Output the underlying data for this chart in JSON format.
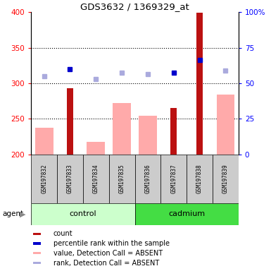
{
  "title": "GDS3632 / 1369329_at",
  "samples": [
    "GSM197832",
    "GSM197833",
    "GSM197834",
    "GSM197835",
    "GSM197836",
    "GSM197837",
    "GSM197838",
    "GSM197839"
  ],
  "values_absent": [
    238,
    null,
    218,
    272,
    254,
    null,
    null,
    284
  ],
  "values_present": [
    null,
    293,
    null,
    null,
    null,
    265,
    399,
    null
  ],
  "rank_absent_pct": [
    55,
    null,
    53,
    57.5,
    56.5,
    null,
    null,
    59
  ],
  "rank_present_pct": [
    null,
    60,
    null,
    null,
    null,
    57.5,
    66.5,
    null
  ],
  "ylim_left": [
    200,
    400
  ],
  "ylim_right": [
    0,
    100
  ],
  "yticks_left": [
    200,
    250,
    300,
    350,
    400
  ],
  "yticks_right": [
    0,
    25,
    50,
    75,
    100
  ],
  "ytick_labels_right": [
    "0",
    "25",
    "50",
    "75",
    "100%"
  ],
  "color_count": "#bb1111",
  "color_rank_present": "#0000cc",
  "color_value_absent": "#ffaaaa",
  "color_rank_absent": "#aaaadd",
  "color_control_bg": "#ccffcc",
  "color_cadmium_bg": "#44dd44",
  "color_sample_bg": "#cccccc",
  "grid_dotted_at": [
    250,
    300,
    350
  ],
  "pink_bar_width": 0.7,
  "red_bar_width": 0.25
}
